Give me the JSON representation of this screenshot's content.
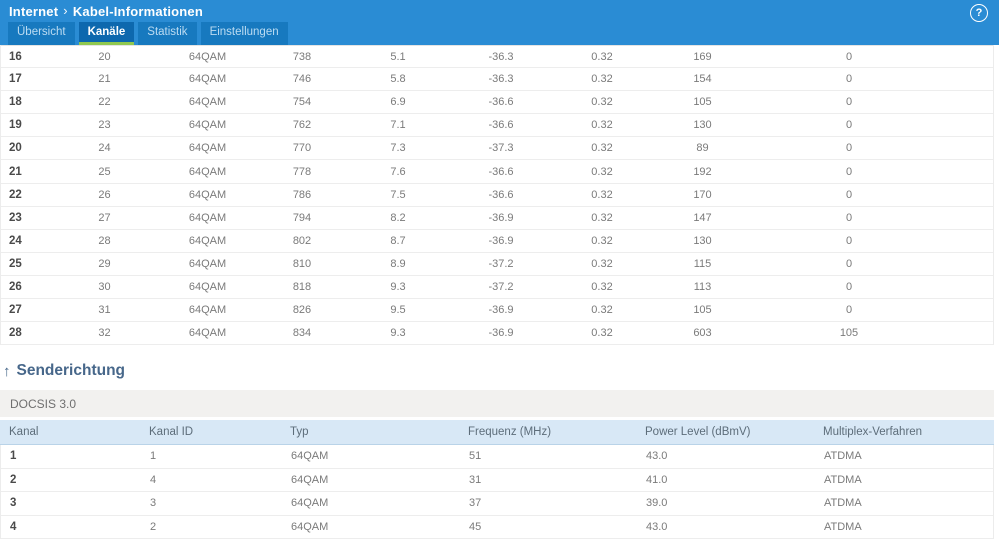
{
  "header": {
    "breadcrumb": {
      "parent": "Internet",
      "separator": "›",
      "current": "Kabel-Informationen"
    },
    "help_label": "?",
    "tabs": [
      {
        "label": "Übersicht",
        "active": false
      },
      {
        "label": "Kanäle",
        "active": true
      },
      {
        "label": "Statistik",
        "active": false
      },
      {
        "label": "Einstellungen",
        "active": false
      }
    ]
  },
  "colors": {
    "topbar_blue": "#2a8cd4",
    "tab_inactive_blue": "#1779bf",
    "tab_active_blue": "#0d68ae",
    "active_tab_underline_green": "#90c84f",
    "upstream_header_bg": "#d8e8f6",
    "docsis_bar_bg": "#f2f1ef",
    "section_heading_color": "#47678a"
  },
  "downstream_table": {
    "rows": [
      [
        "16",
        "20",
        "64QAM",
        "738",
        "5.1",
        "-36.3",
        "0.32",
        "169",
        "0"
      ],
      [
        "17",
        "21",
        "64QAM",
        "746",
        "5.8",
        "-36.3",
        "0.32",
        "154",
        "0"
      ],
      [
        "18",
        "22",
        "64QAM",
        "754",
        "6.9",
        "-36.6",
        "0.32",
        "105",
        "0"
      ],
      [
        "19",
        "23",
        "64QAM",
        "762",
        "7.1",
        "-36.6",
        "0.32",
        "130",
        "0"
      ],
      [
        "20",
        "24",
        "64QAM",
        "770",
        "7.3",
        "-37.3",
        "0.32",
        "89",
        "0"
      ],
      [
        "21",
        "25",
        "64QAM",
        "778",
        "7.6",
        "-36.6",
        "0.32",
        "192",
        "0"
      ],
      [
        "22",
        "26",
        "64QAM",
        "786",
        "7.5",
        "-36.6",
        "0.32",
        "170",
        "0"
      ],
      [
        "23",
        "27",
        "64QAM",
        "794",
        "8.2",
        "-36.9",
        "0.32",
        "147",
        "0"
      ],
      [
        "24",
        "28",
        "64QAM",
        "802",
        "8.7",
        "-36.9",
        "0.32",
        "130",
        "0"
      ],
      [
        "25",
        "29",
        "64QAM",
        "810",
        "8.9",
        "-37.2",
        "0.32",
        "115",
        "0"
      ],
      [
        "26",
        "30",
        "64QAM",
        "818",
        "9.3",
        "-37.2",
        "0.32",
        "113",
        "0"
      ],
      [
        "27",
        "31",
        "64QAM",
        "826",
        "9.5",
        "-36.9",
        "0.32",
        "105",
        "0"
      ],
      [
        "28",
        "32",
        "64QAM",
        "834",
        "9.3",
        "-36.9",
        "0.32",
        "603",
        "105"
      ]
    ]
  },
  "upstream_section": {
    "heading_arrow": "↑",
    "heading": "Senderichtung",
    "subheader": "DOCSIS 3.0",
    "columns": [
      "Kanal",
      "Kanal ID",
      "Typ",
      "Frequenz (MHz)",
      "Power Level (dBmV)",
      "Multiplex-Verfahren"
    ],
    "rows": [
      [
        "1",
        "1",
        "64QAM",
        "51",
        "43.0",
        "ATDMA"
      ],
      [
        "2",
        "4",
        "64QAM",
        "31",
        "41.0",
        "ATDMA"
      ],
      [
        "3",
        "3",
        "64QAM",
        "37",
        "39.0",
        "ATDMA"
      ],
      [
        "4",
        "2",
        "64QAM",
        "45",
        "43.0",
        "ATDMA"
      ]
    ]
  }
}
